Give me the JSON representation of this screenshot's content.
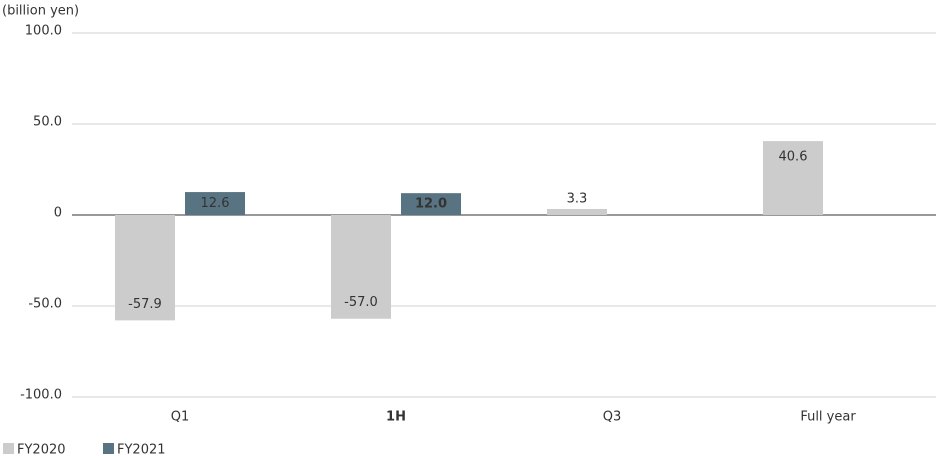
{
  "chart_data": {
    "type": "bar",
    "y_label": "(billion yen)",
    "categories": [
      "Q1",
      "1H",
      "Q3",
      "Full year"
    ],
    "series": [
      {
        "name": "FY2020",
        "color": "#cccccc",
        "values": [
          -57.9,
          -57.0,
          3.3,
          40.6
        ],
        "value_labels": [
          "-57.9",
          "-57.0",
          "3.3",
          "40.6"
        ]
      },
      {
        "name": "FY2021",
        "color": "#587482",
        "values": [
          12.6,
          12.0,
          null,
          null
        ],
        "value_labels": [
          "12.6",
          "12.0",
          null,
          null
        ]
      }
    ],
    "ylim": [
      -100,
      100
    ],
    "yticks": [
      {
        "value": -100,
        "label": "-100.0"
      },
      {
        "value": -50,
        "label": "-50.0"
      },
      0,
      {
        "value": 50,
        "label": "50.0"
      },
      {
        "value": 100,
        "label": "100.0"
      }
    ],
    "grid": true,
    "highlight_category_index": 1,
    "highlight_color": "#3e5a68",
    "legend": "bottom-left"
  }
}
